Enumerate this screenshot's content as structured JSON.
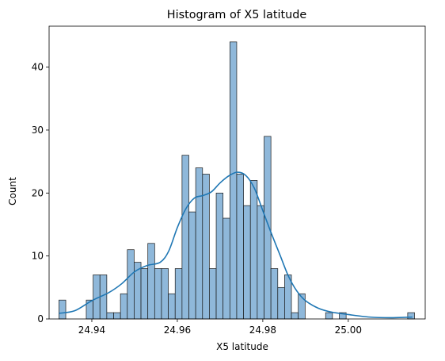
{
  "chart_data": {
    "type": "bar",
    "title": "Histogram of X5 latitude",
    "xlabel": "X5 latitude",
    "ylabel": "Count",
    "xlim": [
      24.93,
      25.018
    ],
    "ylim": [
      0,
      46.5
    ],
    "xticks": [
      {
        "value": 24.94,
        "label": "24.94"
      },
      {
        "value": 24.96,
        "label": "24.96"
      },
      {
        "value": 24.98,
        "label": "24.98"
      },
      {
        "value": 25.0,
        "label": "25.00"
      }
    ],
    "yticks": [
      {
        "value": 0,
        "label": "0"
      },
      {
        "value": 10,
        "label": "10"
      },
      {
        "value": 20,
        "label": "20"
      },
      {
        "value": 30,
        "label": "30"
      },
      {
        "value": 40,
        "label": "40"
      }
    ],
    "bin_start": 24.9323,
    "bin_width": 0.0016,
    "counts": [
      3,
      0,
      0,
      0,
      3,
      7,
      7,
      1,
      1,
      4,
      11,
      9,
      8,
      12,
      8,
      8,
      4,
      8,
      26,
      17,
      24,
      23,
      8,
      20,
      16,
      44,
      23,
      18,
      22,
      18,
      29,
      8,
      5,
      7,
      1,
      4,
      0,
      0,
      0,
      1,
      0,
      1,
      0,
      0,
      0,
      0,
      0,
      0,
      0,
      0,
      0,
      1
    ],
    "kde": [
      [
        24.9323,
        0.9
      ],
      [
        24.936,
        1.3
      ],
      [
        24.94,
        2.9
      ],
      [
        24.944,
        4.2
      ],
      [
        24.947,
        5.6
      ],
      [
        24.95,
        7.5
      ],
      [
        24.953,
        8.5
      ],
      [
        24.956,
        9.0
      ],
      [
        24.958,
        10.8
      ],
      [
        24.96,
        14.5
      ],
      [
        24.962,
        17.5
      ],
      [
        24.964,
        19.2
      ],
      [
        24.966,
        19.6
      ],
      [
        24.968,
        20.2
      ],
      [
        24.97,
        21.6
      ],
      [
        24.972,
        22.7
      ],
      [
        24.974,
        23.3
      ],
      [
        24.976,
        22.8
      ],
      [
        24.978,
        20.8
      ],
      [
        24.98,
        17.2
      ],
      [
        24.982,
        13.6
      ],
      [
        24.984,
        10.2
      ],
      [
        24.986,
        6.8
      ],
      [
        24.988,
        4.4
      ],
      [
        24.99,
        2.9
      ],
      [
        24.993,
        1.7
      ],
      [
        24.996,
        1.1
      ],
      [
        25.0,
        0.7
      ],
      [
        25.005,
        0.3
      ],
      [
        25.01,
        0.2
      ],
      [
        25.015,
        0.3
      ]
    ],
    "bar_color": "#8fb8da",
    "line_color": "#1f77b4"
  }
}
